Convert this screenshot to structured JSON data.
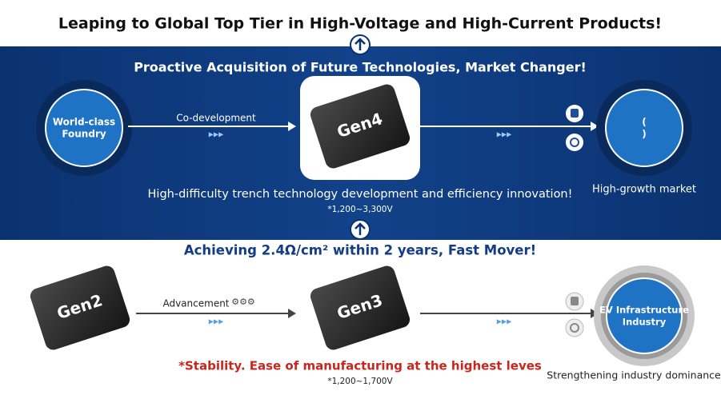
{
  "header": {
    "title": "Leaping to Global Top Tier in High-Voltage and High-Current Products!"
  },
  "top_section": {
    "heading": "Proactive Acquisition of Future Technologies, Market Changer!",
    "source": "World-class Foundry",
    "arrow_label": "Co-development",
    "chip": "Gen4",
    "target": "( )",
    "target_caption": "High-growth market",
    "description": "High-difficulty trench technology development and efficiency innovation!",
    "voltage": "*1,200~3,300V"
  },
  "middle": {
    "heading": "Achieving 2.4Ω/cm² within 2 years, Fast Mover!"
  },
  "bottom_section": {
    "chip_from": "Gen2",
    "arrow_label": "Advancement",
    "chip_to": "Gen3",
    "target": "EV Infrastructure Industry",
    "target_caption": "Strengthening industry dominance",
    "description": "*Stability. Ease of manufacturing at the highest leves",
    "voltage": "*1,200~1,700V"
  }
}
